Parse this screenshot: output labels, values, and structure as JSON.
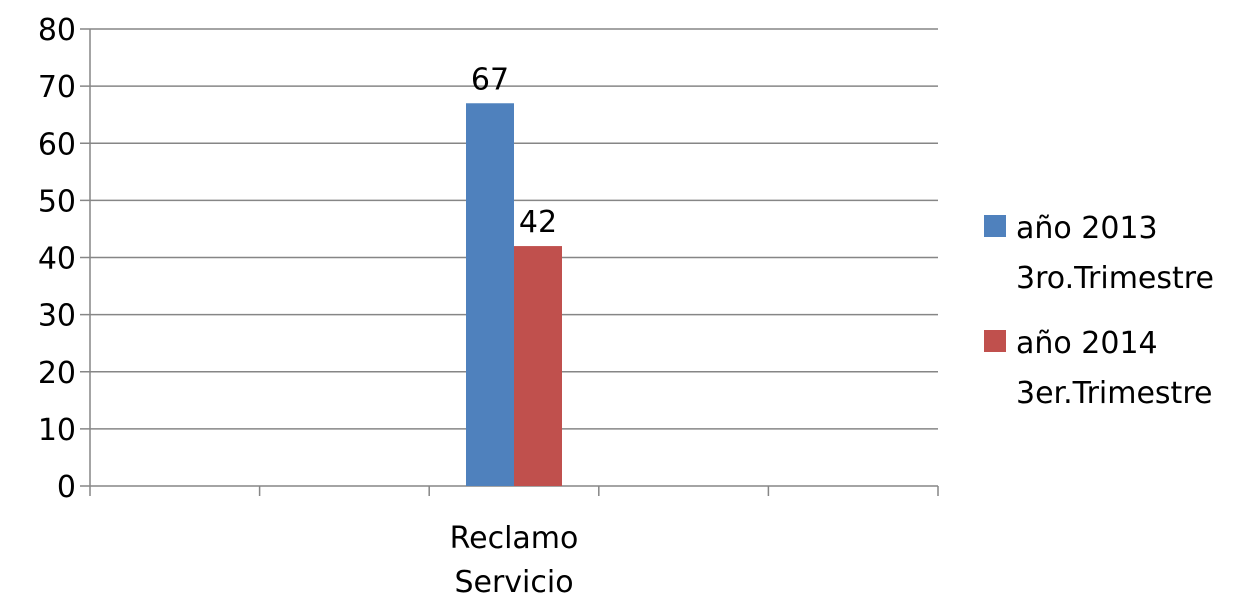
{
  "chart_data": {
    "type": "bar",
    "categories": [
      "Reclamo Servicio"
    ],
    "category_lines": [
      "Reclamo",
      "Servicio"
    ],
    "series": [
      {
        "name": "año 2013 3ro.Trimestre",
        "name_lines": [
          "año 2013",
          "3ro.Trimestre"
        ],
        "values": [
          67
        ],
        "color": "#4F81BD"
      },
      {
        "name": "año 2014 3er.Trimestre",
        "name_lines": [
          "año 2014",
          "3er.Trimestre"
        ],
        "values": [
          42
        ],
        "color": "#C0504D"
      }
    ],
    "ylim": [
      0,
      80
    ],
    "yticks": [
      0,
      10,
      20,
      30,
      40,
      50,
      60,
      70,
      80
    ],
    "grid": true,
    "legend_position": "right",
    "data_labels": true
  }
}
